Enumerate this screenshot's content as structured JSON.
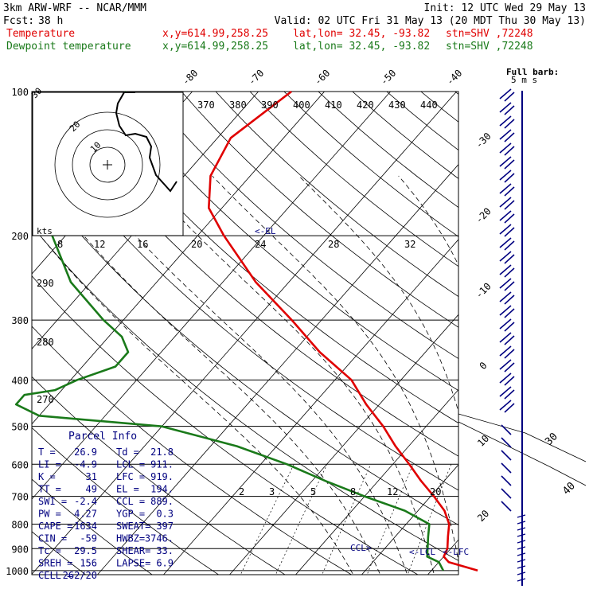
{
  "header": {
    "model": "3km ARW-WRF -- NCAR/MMM",
    "init": "Init: 12 UTC Wed 29 May 13",
    "fcst_label": "Fcst:",
    "fcst_value": "38 h",
    "valid": "Valid: 02 UTC Fri 31 May 13 (20 MDT Thu 30 May 13)"
  },
  "legend": [
    {
      "name": "Temperature",
      "xy": "x,y=614.99,258.25",
      "latlon": "lat,lon= 32.45, -93.82",
      "stn": "stn=SHV ,72248",
      "color": "#e00000"
    },
    {
      "name": "Dewpoint temperature",
      "xy": "x,y=614.99,258.25",
      "latlon": "lat,lon= 32.45, -93.82",
      "stn": "stn=SHV ,72248",
      "color": "#1a7a1a"
    }
  ],
  "barb_title": {
    "line1": "Full barb:",
    "line2": "5 m s"
  },
  "hodograph": {
    "kts_label": "kts",
    "ring_labels": [
      "10",
      "20",
      "30"
    ],
    "speed_ticks": [
      "8",
      "12",
      "16",
      "20",
      "24",
      "28",
      "32"
    ]
  },
  "parcel_info": {
    "title": "Parcel Info",
    "rows": [
      [
        "T  =",
        "26.9",
        "Td =",
        "21.8"
      ],
      [
        "LI =",
        "-4.9",
        "LCL =",
        "911."
      ],
      [
        "K  =",
        "31",
        "LFC =",
        "919."
      ],
      [
        "TT =",
        "49",
        "EL  =",
        "194."
      ],
      [
        "SWI =",
        "-2.4",
        "CCL =",
        "889."
      ],
      [
        "PW =",
        "4.27",
        "YGP =",
        "0.3"
      ],
      [
        "CAPE =",
        "1634",
        "SWEAT=",
        "397"
      ],
      [
        "CIN =",
        "-59",
        "HWBZ=",
        "3746."
      ],
      [
        "Tc =",
        "29.5",
        "SHEAR=",
        "33."
      ],
      [
        "SREH =",
        "156",
        "LAPSE=",
        "6.9"
      ],
      [
        "CELL =",
        "262/20",
        "",
        ""
      ]
    ]
  },
  "level_labels": {
    "el": "<-EL",
    "ccl": "CCL>",
    "lcl": "<-LCL",
    "lfc": "<-LFC"
  },
  "chart_data": {
    "type": "line",
    "title": "",
    "xlabel": "",
    "ylabel": "",
    "pressure_levels": [
      100,
      200,
      300,
      400,
      500,
      600,
      700,
      800,
      900,
      1000
    ],
    "ylim": [
      1020,
      100
    ],
    "isotherm_labels": [
      -80,
      -70,
      -60,
      -50,
      -40,
      -30,
      -20,
      -10,
      0,
      10,
      20,
      30,
      40
    ],
    "theta_labels": [
      370,
      380,
      390,
      400,
      410,
      420,
      430,
      440
    ],
    "theta_e_labels": [
      290,
      280,
      270
    ],
    "mixing_ratio_labels": [
      2,
      3,
      5,
      8,
      12,
      20
    ],
    "series": [
      {
        "name": "Temperature",
        "color": "#e00000",
        "points": [
          [
            1000,
            27
          ],
          [
            960,
            21.5
          ],
          [
            935,
            20
          ],
          [
            900,
            19.5
          ],
          [
            850,
            18
          ],
          [
            800,
            16.5
          ],
          [
            750,
            14
          ],
          [
            700,
            10.5
          ],
          [
            650,
            6.5
          ],
          [
            600,
            2.5
          ],
          [
            550,
            -2
          ],
          [
            500,
            -6.5
          ],
          [
            450,
            -12
          ],
          [
            400,
            -17.5
          ],
          [
            350,
            -26
          ],
          [
            300,
            -34.5
          ],
          [
            250,
            -45
          ],
          [
            200,
            -56
          ],
          [
            175,
            -62
          ],
          [
            150,
            -66
          ],
          [
            125,
            -68
          ],
          [
            100,
            -65
          ]
        ]
      },
      {
        "name": "Dewpoint temperature",
        "color": "#1a7a1a",
        "points": [
          [
            1000,
            21.8
          ],
          [
            960,
            20
          ],
          [
            935,
            17.5
          ],
          [
            900,
            16.5
          ],
          [
            850,
            15
          ],
          [
            800,
            13.5
          ],
          [
            750,
            8
          ],
          [
            700,
            0
          ],
          [
            650,
            -8
          ],
          [
            600,
            -16
          ],
          [
            550,
            -26
          ],
          [
            500,
            -40
          ],
          [
            475,
            -60
          ],
          [
            450,
            -65
          ],
          [
            430,
            -65
          ],
          [
            420,
            -61
          ],
          [
            400,
            -59
          ],
          [
            375,
            -55
          ],
          [
            350,
            -55
          ],
          [
            325,
            -58
          ],
          [
            300,
            -63
          ],
          [
            250,
            -73
          ],
          [
            200,
            -82
          ],
          [
            150,
            -88
          ],
          [
            125,
            -92
          ],
          [
            110,
            -91
          ],
          [
            100,
            -90
          ]
        ]
      }
    ]
  }
}
